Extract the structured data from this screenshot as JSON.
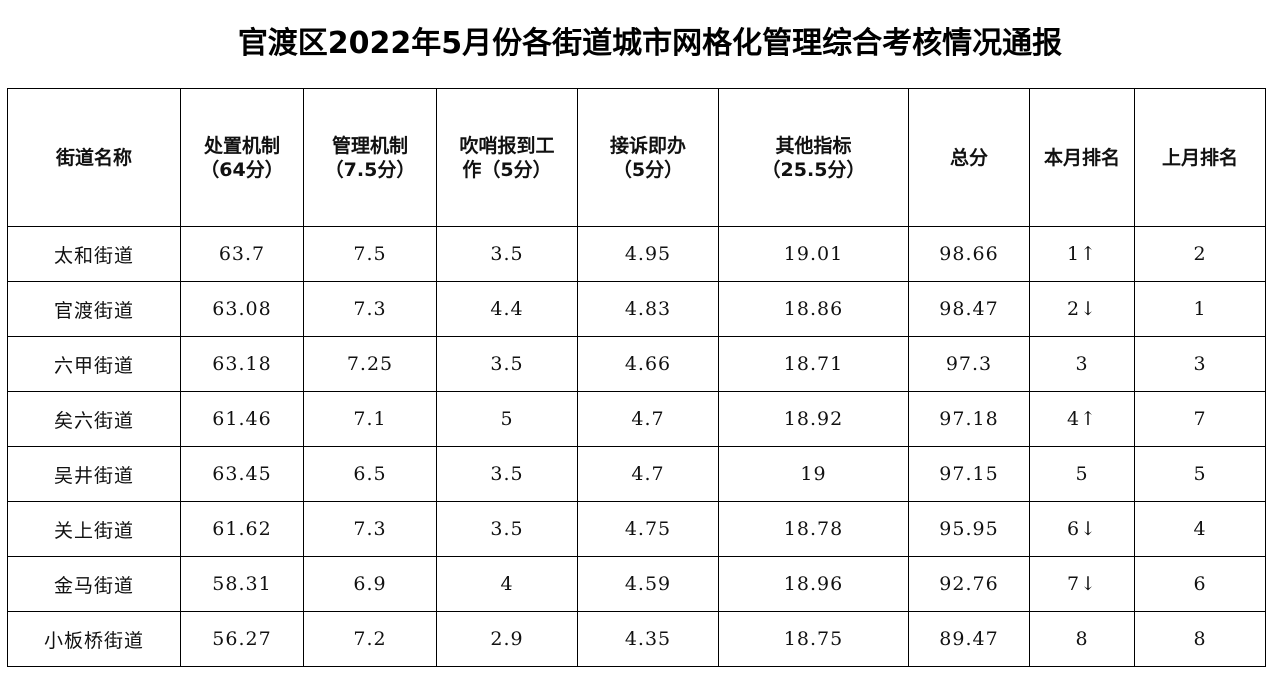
{
  "title": "官渡区2022年5月份各街道城市网格化管理综合考核情况通报",
  "headers": [
    {
      "line1": "街道名称",
      "line2": ""
    },
    {
      "line1": "处置机制",
      "line2": "（64分）"
    },
    {
      "line1": "管理机制",
      "line2": "（7.5分）"
    },
    {
      "line1": "吹哨报到工",
      "line2": "作（5分）"
    },
    {
      "line1": "接诉即办",
      "line2": "（5分）"
    },
    {
      "line1": "其他指标",
      "line2": "（25.5分）"
    },
    {
      "line1": "总分",
      "line2": ""
    },
    {
      "line1": "本月排名",
      "line2": ""
    },
    {
      "line1": "上月排名",
      "line2": ""
    }
  ],
  "rows": [
    {
      "name": "太和街道",
      "chuzhi": "63.7",
      "guanli": "7.5",
      "chuishao": "3.5",
      "jiesu": "4.95",
      "qita": "19.01",
      "total": "98.66",
      "rank": "1↑",
      "last_rank": "2"
    },
    {
      "name": "官渡街道",
      "chuzhi": "63.08",
      "guanli": "7.3",
      "chuishao": "4.4",
      "jiesu": "4.83",
      "qita": "18.86",
      "total": "98.47",
      "rank": "2↓",
      "last_rank": "1"
    },
    {
      "name": "六甲街道",
      "chuzhi": "63.18",
      "guanli": "7.25",
      "chuishao": "3.5",
      "jiesu": "4.66",
      "qita": "18.71",
      "total": "97.3",
      "rank": "3",
      "last_rank": "3"
    },
    {
      "name": "矣六街道",
      "chuzhi": "61.46",
      "guanli": "7.1",
      "chuishao": "5",
      "jiesu": "4.7",
      "qita": "18.92",
      "total": "97.18",
      "rank": "4↑",
      "last_rank": "7"
    },
    {
      "name": "吴井街道",
      "chuzhi": "63.45",
      "guanli": "6.5",
      "chuishao": "3.5",
      "jiesu": "4.7",
      "qita": "19",
      "total": "97.15",
      "rank": "5",
      "last_rank": "5"
    },
    {
      "name": "关上街道",
      "chuzhi": "61.62",
      "guanli": "7.3",
      "chuishao": "3.5",
      "jiesu": "4.75",
      "qita": "18.78",
      "total": "95.95",
      "rank": "6↓",
      "last_rank": "4"
    },
    {
      "name": "金马街道",
      "chuzhi": "58.31",
      "guanli": "6.9",
      "chuishao": "4",
      "jiesu": "4.59",
      "qita": "18.96",
      "total": "92.76",
      "rank": "7↓",
      "last_rank": "6"
    },
    {
      "name": "小板桥街道",
      "chuzhi": "56.27",
      "guanli": "7.2",
      "chuishao": "2.9",
      "jiesu": "4.35",
      "qita": "18.75",
      "total": "89.47",
      "rank": "8",
      "last_rank": "8"
    }
  ]
}
